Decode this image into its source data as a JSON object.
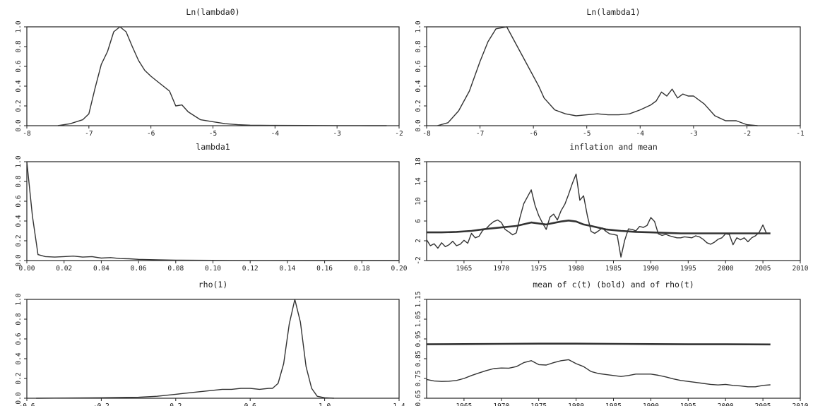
{
  "chart_data": [
    {
      "type": "line",
      "title": "Ln(lambda0)",
      "xlim": [
        -8,
        -2
      ],
      "ylim": [
        0,
        1
      ],
      "xticks": [
        -8,
        -7,
        -6,
        -5,
        -4,
        -3,
        -2
      ],
      "xtick_labels": [
        "-8",
        "-7",
        "-6",
        "-5",
        "-4",
        "-3",
        "-2"
      ],
      "yticks": [
        0,
        0.2,
        0.4,
        0.6,
        0.8,
        1
      ],
      "ytick_labels": [
        "0.0",
        "0.2",
        "0.4",
        "0.6",
        "0.8",
        "1.0"
      ],
      "series": [
        {
          "x": [
            -7.5,
            -7.3,
            -7.1,
            -7.0,
            -6.9,
            -6.8,
            -6.7,
            -6.6,
            -6.5,
            -6.4,
            -6.3,
            -6.2,
            -6.1,
            -6.0,
            -5.9,
            -5.8,
            -5.7,
            -5.6,
            -5.5,
            -5.4,
            -5.3,
            -5.2,
            -5.0,
            -4.8,
            -4.6,
            -4.4,
            -4.0,
            -3.5,
            -3.0,
            -2.5,
            -2.2
          ],
          "y": [
            0.0,
            0.02,
            0.06,
            0.12,
            0.38,
            0.62,
            0.75,
            0.95,
            1.0,
            0.95,
            0.8,
            0.66,
            0.56,
            0.5,
            0.45,
            0.4,
            0.35,
            0.2,
            0.21,
            0.14,
            0.1,
            0.06,
            0.04,
            0.02,
            0.01,
            0.005,
            0.003,
            0.002,
            0.001,
            0.0,
            0.0
          ]
        }
      ]
    },
    {
      "type": "line",
      "title": "Ln(lambda1)",
      "xlim": [
        -8,
        -1
      ],
      "ylim": [
        0,
        1
      ],
      "xticks": [
        -8,
        -7,
        -6,
        -5,
        -4,
        -3,
        -2,
        -1
      ],
      "xtick_labels": [
        "-8",
        "-7",
        "-6",
        "-5",
        "-4",
        "-3",
        "-2",
        "-1"
      ],
      "yticks": [
        0,
        0.2,
        0.4,
        0.6,
        0.8,
        1
      ],
      "ytick_labels": [
        "0.0",
        "0.2",
        "0.4",
        "0.6",
        "0.8",
        "1.0"
      ],
      "series": [
        {
          "x": [
            -7.8,
            -7.6,
            -7.4,
            -7.2,
            -7.0,
            -6.85,
            -6.7,
            -6.5,
            -6.3,
            -6.1,
            -5.9,
            -5.8,
            -5.6,
            -5.4,
            -5.2,
            -5.0,
            -4.8,
            -4.6,
            -4.4,
            -4.2,
            -4.0,
            -3.8,
            -3.7,
            -3.6,
            -3.5,
            -3.4,
            -3.3,
            -3.2,
            -3.1,
            -3.0,
            -2.8,
            -2.6,
            -2.4,
            -2.2,
            -2.0,
            -1.8
          ],
          "y": [
            0.0,
            0.03,
            0.15,
            0.35,
            0.65,
            0.85,
            0.98,
            1.0,
            0.8,
            0.6,
            0.4,
            0.28,
            0.16,
            0.12,
            0.1,
            0.11,
            0.12,
            0.11,
            0.11,
            0.12,
            0.16,
            0.21,
            0.25,
            0.34,
            0.3,
            0.37,
            0.28,
            0.32,
            0.3,
            0.3,
            0.22,
            0.1,
            0.05,
            0.05,
            0.01,
            0.0
          ]
        }
      ]
    },
    {
      "type": "line",
      "title": "lambda1",
      "xlim": [
        0,
        0.2
      ],
      "ylim": [
        0,
        1
      ],
      "xticks": [
        0,
        0.02,
        0.04,
        0.06,
        0.08,
        0.1,
        0.12,
        0.14,
        0.16,
        0.18,
        0.2
      ],
      "xtick_labels": [
        "0.00",
        "0.02",
        "0.04",
        "0.06",
        "0.08",
        "0.10",
        "0.12",
        "0.14",
        "0.16",
        "0.18",
        "0.20"
      ],
      "yticks": [
        0,
        0.2,
        0.4,
        0.6,
        0.8,
        1
      ],
      "ytick_labels": [
        "0.0",
        "0.2",
        "0.4",
        "0.6",
        "0.8",
        "1.0"
      ],
      "series": [
        {
          "x": [
            0.0,
            0.003,
            0.006,
            0.01,
            0.015,
            0.02,
            0.025,
            0.03,
            0.035,
            0.04,
            0.045,
            0.05,
            0.055,
            0.06,
            0.07,
            0.08,
            0.1,
            0.12,
            0.15,
            0.2
          ],
          "y": [
            1.0,
            0.45,
            0.06,
            0.04,
            0.035,
            0.04,
            0.045,
            0.035,
            0.04,
            0.025,
            0.03,
            0.02,
            0.018,
            0.012,
            0.008,
            0.004,
            0.002,
            0.001,
            0.0,
            0.0
          ]
        }
      ]
    },
    {
      "type": "line",
      "title": "inflation and mean",
      "xlim": [
        1960,
        2010
      ],
      "ylim": [
        -2,
        18
      ],
      "xticks": [
        1965,
        1970,
        1975,
        1980,
        1985,
        1990,
        1995,
        2000,
        2005,
        2010
      ],
      "xtick_labels": [
        "1965",
        "1970",
        "1975",
        "1980",
        "1985",
        "1990",
        "1995",
        "2000",
        "2005",
        "2010"
      ],
      "yticks": [
        -2,
        2,
        6,
        10,
        14,
        18
      ],
      "ytick_labels": [
        "-2",
        "2",
        "6",
        "10",
        "14",
        "18"
      ],
      "series": [
        {
          "x": [
            1960.0,
            1960.5,
            1961.0,
            1961.5,
            1962.0,
            1962.5,
            1963.0,
            1963.5,
            1964.0,
            1964.5,
            1965.0,
            1965.5,
            1966.0,
            1966.5,
            1967.0,
            1967.5,
            1968.0,
            1968.5,
            1969.0,
            1969.5,
            1970.0,
            1970.5,
            1971.0,
            1971.5,
            1972.0,
            1972.5,
            1973.0,
            1973.5,
            1974.0,
            1974.5,
            1975.0,
            1975.5,
            1976.0,
            1976.5,
            1977.0,
            1977.5,
            1978.0,
            1978.5,
            1979.0,
            1979.5,
            1980.0,
            1980.5,
            1981.0,
            1981.5,
            1982.0,
            1982.5,
            1983.0,
            1983.5,
            1984.0,
            1984.5,
            1985.0,
            1985.5,
            1986.0,
            1986.5,
            1987.0,
            1987.5,
            1988.0,
            1988.5,
            1989.0,
            1989.5,
            1990.0,
            1990.5,
            1991.0,
            1991.5,
            1992.0,
            1992.5,
            1993.0,
            1993.5,
            1994.0,
            1994.5,
            1995.0,
            1995.5,
            1996.0,
            1996.5,
            1997.0,
            1997.5,
            1998.0,
            1998.5,
            1999.0,
            1999.5,
            2000.0,
            2000.5,
            2001.0,
            2001.5,
            2002.0,
            2002.5,
            2003.0,
            2003.5,
            2004.0,
            2004.5,
            2005.0,
            2005.5
          ],
          "y": [
            2.2,
            1.0,
            1.4,
            0.5,
            1.6,
            0.8,
            1.2,
            1.9,
            1.0,
            1.3,
            2.1,
            1.5,
            3.5,
            2.6,
            2.9,
            4.1,
            4.5,
            5.3,
            5.9,
            6.2,
            5.7,
            4.3,
            3.8,
            3.2,
            3.6,
            6.8,
            9.5,
            10.9,
            12.3,
            9.2,
            7.1,
            5.6,
            4.3,
            6.8,
            7.4,
            6.2,
            8.1,
            9.4,
            11.4,
            13.6,
            15.5,
            10.2,
            11.1,
            7.1,
            3.9,
            3.5,
            4.0,
            4.6,
            3.9,
            3.4,
            3.3,
            3.1,
            -1.3,
            2.1,
            4.4,
            4.3,
            4.0,
            4.9,
            4.7,
            5.1,
            6.7,
            5.9,
            3.4,
            3.1,
            3.3,
            3.0,
            2.8,
            2.6,
            2.6,
            2.8,
            2.7,
            2.6,
            3.0,
            2.8,
            2.3,
            1.6,
            1.3,
            1.7,
            2.3,
            2.6,
            3.4,
            3.3,
            1.2,
            2.6,
            2.2,
            2.6,
            1.8,
            2.6,
            3.0,
            3.7,
            5.2,
            3.4
          ]
        },
        {
          "x": [
            1960,
            1962,
            1964,
            1966,
            1968,
            1970,
            1972,
            1974,
            1976,
            1978,
            1979,
            1980,
            1981,
            1982,
            1984,
            1986,
            1988,
            1990,
            1992,
            1994,
            1996,
            1998,
            2000,
            2002,
            2004,
            2006
          ],
          "y": [
            3.7,
            3.7,
            3.8,
            4.0,
            4.4,
            4.7,
            5.0,
            5.7,
            5.3,
            5.9,
            6.1,
            5.9,
            5.3,
            5.0,
            4.3,
            4.0,
            3.8,
            3.7,
            3.6,
            3.5,
            3.5,
            3.5,
            3.5,
            3.5,
            3.5,
            3.5
          ],
          "bold": true
        }
      ]
    },
    {
      "type": "line",
      "title": "rho(1)",
      "xlim": [
        -0.6,
        1.4
      ],
      "ylim": [
        0,
        1
      ],
      "xticks": [
        -0.6,
        -0.2,
        0.2,
        0.6,
        1.0,
        1.4
      ],
      "xtick_labels": [
        "-0.6",
        "-0.2",
        "0.2",
        "0.6",
        "1.0",
        "1.4"
      ],
      "yticks": [
        0,
        0.2,
        0.4,
        0.6,
        0.8,
        1
      ],
      "ytick_labels": [
        "0.0",
        "0.2",
        "0.4",
        "0.6",
        "0.8",
        "1.0"
      ],
      "series": [
        {
          "x": [
            -0.55,
            -0.4,
            -0.2,
            0.0,
            0.1,
            0.2,
            0.3,
            0.4,
            0.45,
            0.5,
            0.55,
            0.6,
            0.65,
            0.7,
            0.72,
            0.75,
            0.78,
            0.81,
            0.84,
            0.87,
            0.9,
            0.93,
            0.96,
            1.0,
            1.05
          ],
          "y": [
            0.0,
            0.002,
            0.005,
            0.01,
            0.02,
            0.04,
            0.06,
            0.08,
            0.09,
            0.09,
            0.1,
            0.1,
            0.09,
            0.1,
            0.1,
            0.15,
            0.35,
            0.75,
            1.0,
            0.77,
            0.32,
            0.1,
            0.02,
            0.005,
            0.0
          ]
        }
      ]
    },
    {
      "type": "line",
      "title": "mean of c(t) (bold) and of rho(t)",
      "xlim": [
        1960,
        2010
      ],
      "ylim": [
        0.65,
        1.15
      ],
      "xticks": [
        1965,
        1970,
        1975,
        1980,
        1985,
        1990,
        1995,
        2000,
        2005,
        2010
      ],
      "xtick_labels": [
        "1965",
        "1970",
        "1975",
        "1980",
        "1985",
        "1990",
        "1995",
        "2000",
        "2005",
        "2010"
      ],
      "yticks": [
        0.65,
        0.75,
        0.85,
        0.95,
        1.05,
        1.15
      ],
      "ytick_labels": [
        "0.65",
        "0.75",
        "0.85",
        "0.95",
        "1.05",
        "1.15"
      ],
      "series": [
        {
          "x": [
            1960,
            1965,
            1970,
            1975,
            1980,
            1985,
            1990,
            1995,
            2000,
            2006
          ],
          "y": [
            0.923,
            0.924,
            0.925,
            0.926,
            0.926,
            0.925,
            0.924,
            0.923,
            0.923,
            0.922
          ],
          "bold": true
        },
        {
          "x": [
            1960,
            1961,
            1962,
            1963,
            1964,
            1965,
            1966,
            1967,
            1968,
            1969,
            1970,
            1971,
            1972,
            1973,
            1974,
            1975,
            1976,
            1977,
            1978,
            1979,
            1980,
            1981,
            1982,
            1983,
            1984,
            1985,
            1986,
            1987,
            1988,
            1989,
            1990,
            1991,
            1992,
            1993,
            1994,
            1995,
            1996,
            1997,
            1998,
            1999,
            2000,
            2001,
            2002,
            2003,
            2004,
            2005,
            2006
          ],
          "y": [
            0.745,
            0.737,
            0.735,
            0.736,
            0.74,
            0.75,
            0.765,
            0.778,
            0.79,
            0.8,
            0.803,
            0.802,
            0.81,
            0.83,
            0.84,
            0.82,
            0.818,
            0.83,
            0.84,
            0.845,
            0.825,
            0.81,
            0.785,
            0.775,
            0.77,
            0.765,
            0.76,
            0.765,
            0.772,
            0.772,
            0.772,
            0.766,
            0.758,
            0.748,
            0.74,
            0.735,
            0.73,
            0.725,
            0.72,
            0.717,
            0.72,
            0.715,
            0.712,
            0.708,
            0.708,
            0.715,
            0.718
          ]
        }
      ]
    }
  ]
}
